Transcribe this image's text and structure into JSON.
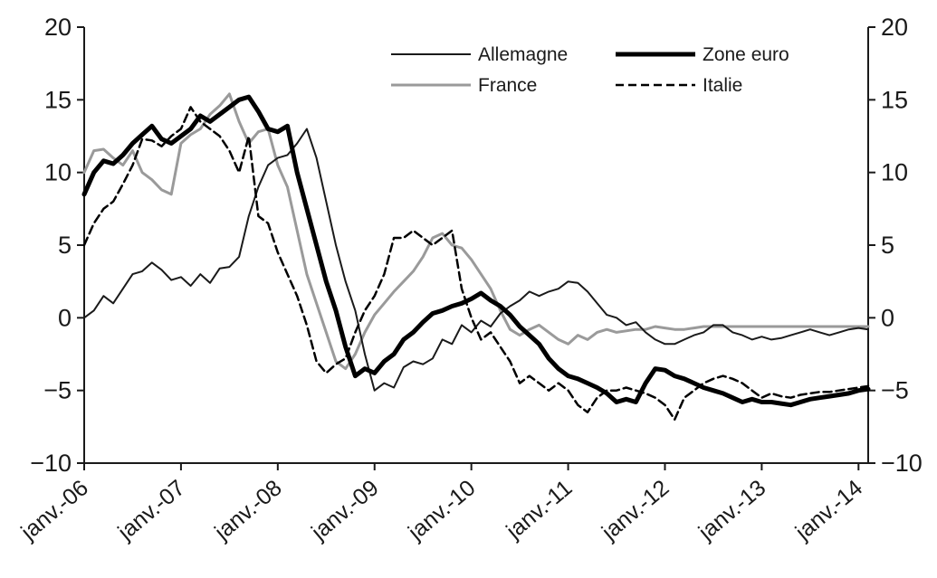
{
  "chart_data": {
    "type": "line",
    "title": "",
    "xlabel": "",
    "ylabel": "",
    "ylim": [
      -10,
      20
    ],
    "yticks": [
      -10,
      -5,
      0,
      5,
      10,
      15,
      20
    ],
    "ytick_labels": [
      "−10",
      "−5",
      "0",
      "5",
      "10",
      "15",
      "20"
    ],
    "x_ticks": [
      2006,
      2007,
      2008,
      2009,
      2010,
      2011,
      2012,
      2013,
      2014
    ],
    "x_tick_labels": [
      "janv.-06",
      "janv.-07",
      "janv.-08",
      "janv.-09",
      "janv.-10",
      "janv.-11",
      "janv.-12",
      "janv.-13",
      "janv.-14"
    ],
    "xlim": [
      2006,
      2014.1
    ],
    "grid": false,
    "secondary_y_axis": true,
    "legend": {
      "placement": "top-right"
    },
    "series": [
      {
        "name": "Allemagne",
        "color": "#1a1a1a",
        "style": "thin-solid",
        "x": [
          2006.0,
          2006.1,
          2006.2,
          2006.3,
          2006.4,
          2006.5,
          2006.6,
          2006.7,
          2006.8,
          2006.9,
          2007.0,
          2007.1,
          2007.2,
          2007.3,
          2007.4,
          2007.5,
          2007.6,
          2007.7,
          2007.8,
          2007.9,
          2008.0,
          2008.1,
          2008.2,
          2008.3,
          2008.4,
          2008.5,
          2008.6,
          2008.7,
          2008.8,
          2008.9,
          2009.0,
          2009.1,
          2009.2,
          2009.3,
          2009.4,
          2009.5,
          2009.6,
          2009.7,
          2009.8,
          2009.9,
          2010.0,
          2010.1,
          2010.2,
          2010.3,
          2010.4,
          2010.5,
          2010.6,
          2010.7,
          2010.8,
          2010.9,
          2011.0,
          2011.1,
          2011.2,
          2011.3,
          2011.4,
          2011.5,
          2011.6,
          2011.7,
          2011.8,
          2011.9,
          2012.0,
          2012.1,
          2012.2,
          2012.3,
          2012.4,
          2012.5,
          2012.6,
          2012.7,
          2012.8,
          2012.9,
          2013.0,
          2013.1,
          2013.2,
          2013.3,
          2013.4,
          2013.5,
          2013.6,
          2013.7,
          2013.8,
          2013.9,
          2014.0,
          2014.1
        ],
        "values": [
          0,
          0.5,
          1.5,
          1,
          2,
          3,
          3.2,
          3.8,
          3.3,
          2.6,
          2.8,
          2.2,
          3,
          2.4,
          3.4,
          3.5,
          4.2,
          7,
          9,
          10.5,
          11,
          11.2,
          12,
          13,
          11,
          8,
          5,
          2.5,
          0.5,
          -2.5,
          -5,
          -4.5,
          -4.8,
          -3.4,
          -3,
          -3.2,
          -2.8,
          -1.5,
          -1.8,
          -0.5,
          -1,
          -0.2,
          -0.6,
          0.3,
          0.8,
          1.2,
          1.8,
          1.5,
          1.8,
          2,
          2.5,
          2.4,
          1.8,
          1,
          0.2,
          0,
          -0.5,
          -0.3,
          -1,
          -1.5,
          -1.8,
          -1.8,
          -1.5,
          -1.2,
          -1,
          -0.5,
          -0.5,
          -1,
          -1.2,
          -1.5,
          -1.3,
          -1.5,
          -1.4,
          -1.2,
          -1,
          -0.8,
          -1,
          -1.2,
          -1,
          -0.8,
          -0.7,
          -0.8
        ]
      },
      {
        "name": "Zone euro",
        "color": "#000000",
        "style": "thick-solid",
        "x": [
          2006.0,
          2006.1,
          2006.2,
          2006.3,
          2006.4,
          2006.5,
          2006.6,
          2006.7,
          2006.8,
          2006.9,
          2007.0,
          2007.1,
          2007.2,
          2007.3,
          2007.4,
          2007.5,
          2007.6,
          2007.7,
          2007.8,
          2007.9,
          2008.0,
          2008.1,
          2008.2,
          2008.3,
          2008.4,
          2008.5,
          2008.6,
          2008.7,
          2008.8,
          2008.9,
          2009.0,
          2009.1,
          2009.2,
          2009.3,
          2009.4,
          2009.5,
          2009.6,
          2009.7,
          2009.8,
          2009.9,
          2010.0,
          2010.1,
          2010.2,
          2010.3,
          2010.4,
          2010.5,
          2010.6,
          2010.7,
          2010.8,
          2010.9,
          2011.0,
          2011.1,
          2011.2,
          2011.3,
          2011.4,
          2011.5,
          2011.6,
          2011.7,
          2011.8,
          2011.9,
          2012.0,
          2012.1,
          2012.2,
          2012.3,
          2012.4,
          2012.5,
          2012.6,
          2012.7,
          2012.8,
          2012.9,
          2013.0,
          2013.1,
          2013.2,
          2013.3,
          2013.4,
          2013.5,
          2013.6,
          2013.7,
          2013.8,
          2013.9,
          2014.0,
          2014.1
        ],
        "values": [
          8.5,
          10,
          10.8,
          10.6,
          11.2,
          12,
          12.6,
          13.2,
          12.3,
          12,
          12.5,
          13,
          13.9,
          13.5,
          14,
          14.5,
          15,
          15.2,
          14.2,
          13,
          12.8,
          13.2,
          10,
          7.5,
          5,
          2.5,
          0.5,
          -2,
          -4,
          -3.5,
          -3.8,
          -3,
          -2.5,
          -1.5,
          -1,
          -0.3,
          0.3,
          0.5,
          0.8,
          1,
          1.3,
          1.7,
          1.2,
          0.8,
          0.2,
          -0.6,
          -1.2,
          -1.8,
          -2.8,
          -3.5,
          -4,
          -4.2,
          -4.5,
          -4.8,
          -5.2,
          -5.8,
          -5.6,
          -5.8,
          -4.5,
          -3.5,
          -3.6,
          -4,
          -4.2,
          -4.5,
          -4.8,
          -5,
          -5.2,
          -5.5,
          -5.8,
          -5.6,
          -5.8,
          -5.8,
          -5.9,
          -6,
          -5.8,
          -5.6,
          -5.5,
          -5.4,
          -5.3,
          -5.2,
          -5,
          -4.9
        ]
      },
      {
        "name": "France",
        "color": "#9a9a9a",
        "style": "gray-solid",
        "x": [
          2006.0,
          2006.1,
          2006.2,
          2006.3,
          2006.4,
          2006.5,
          2006.6,
          2006.7,
          2006.8,
          2006.9,
          2007.0,
          2007.1,
          2007.2,
          2007.3,
          2007.4,
          2007.5,
          2007.6,
          2007.7,
          2007.8,
          2007.9,
          2008.0,
          2008.1,
          2008.2,
          2008.3,
          2008.4,
          2008.5,
          2008.6,
          2008.7,
          2008.8,
          2008.9,
          2009.0,
          2009.1,
          2009.2,
          2009.3,
          2009.4,
          2009.5,
          2009.6,
          2009.7,
          2009.8,
          2009.9,
          2010.0,
          2010.1,
          2010.2,
          2010.3,
          2010.4,
          2010.5,
          2010.6,
          2010.7,
          2010.8,
          2010.9,
          2011.0,
          2011.1,
          2011.2,
          2011.3,
          2011.4,
          2011.5,
          2011.6,
          2011.7,
          2011.8,
          2011.9,
          2012.0,
          2012.1,
          2012.2,
          2012.3,
          2012.4,
          2012.5,
          2012.6,
          2012.7,
          2012.8,
          2012.9,
          2013.0,
          2013.1,
          2013.2,
          2013.3,
          2013.4,
          2013.5,
          2013.6,
          2013.7,
          2013.8,
          2013.9,
          2014.0,
          2014.1
        ],
        "values": [
          10,
          11.5,
          11.6,
          11,
          10.5,
          11.5,
          10,
          9.5,
          8.8,
          8.5,
          12,
          12.6,
          13,
          14,
          14.6,
          15.4,
          13.5,
          12,
          12.8,
          13,
          10.5,
          9,
          6,
          3,
          1,
          -1,
          -3,
          -3.5,
          -2.5,
          -1,
          0.2,
          1,
          1.8,
          2.5,
          3.2,
          4.2,
          5.5,
          5.8,
          5,
          4.8,
          4,
          3,
          2,
          0.5,
          -0.8,
          -1.2,
          -0.8,
          -0.5,
          -1,
          -1.5,
          -1.8,
          -1.2,
          -1.5,
          -1,
          -0.8,
          -1,
          -0.9,
          -0.8,
          -0.8,
          -0.6,
          -0.7,
          -0.8,
          -0.8,
          -0.7,
          -0.6,
          -0.6,
          -0.6,
          -0.6,
          -0.6,
          -0.6,
          -0.6,
          -0.6,
          -0.6,
          -0.6,
          -0.6,
          -0.6,
          -0.6,
          -0.6,
          -0.6,
          -0.6,
          -0.6,
          -0.6
        ]
      },
      {
        "name": "Italie",
        "color": "#000000",
        "style": "dashed",
        "x": [
          2006.0,
          2006.1,
          2006.2,
          2006.3,
          2006.4,
          2006.5,
          2006.6,
          2006.7,
          2006.8,
          2006.9,
          2007.0,
          2007.1,
          2007.2,
          2007.3,
          2007.4,
          2007.5,
          2007.6,
          2007.7,
          2007.8,
          2007.9,
          2008.0,
          2008.1,
          2008.2,
          2008.3,
          2008.4,
          2008.5,
          2008.6,
          2008.7,
          2008.8,
          2008.9,
          2009.0,
          2009.1,
          2009.2,
          2009.3,
          2009.4,
          2009.5,
          2009.6,
          2009.7,
          2009.8,
          2009.9,
          2010.0,
          2010.1,
          2010.2,
          2010.3,
          2010.4,
          2010.5,
          2010.6,
          2010.7,
          2010.8,
          2010.9,
          2011.0,
          2011.1,
          2011.2,
          2011.3,
          2011.4,
          2011.5,
          2011.6,
          2011.7,
          2011.8,
          2011.9,
          2012.0,
          2012.1,
          2012.2,
          2012.3,
          2012.4,
          2012.5,
          2012.6,
          2012.7,
          2012.8,
          2012.9,
          2013.0,
          2013.1,
          2013.2,
          2013.3,
          2013.4,
          2013.5,
          2013.6,
          2013.7,
          2013.8,
          2013.9,
          2014.0,
          2014.1
        ],
        "values": [
          5,
          6.5,
          7.5,
          8,
          9.2,
          10.5,
          12.3,
          12.2,
          11.8,
          12.5,
          13,
          14.5,
          13.5,
          13,
          12.5,
          11.5,
          10,
          12.5,
          7,
          6.5,
          4.5,
          3,
          1.5,
          -0.5,
          -3,
          -3.8,
          -3.2,
          -2.8,
          -1,
          0.5,
          1.5,
          3,
          5.5,
          5.5,
          6,
          5.5,
          5,
          5.5,
          6,
          2,
          0,
          -1.5,
          -1,
          -2,
          -3,
          -4.5,
          -4,
          -4.5,
          -5,
          -4.5,
          -5,
          -6,
          -6.5,
          -5.5,
          -5,
          -5,
          -4.8,
          -5,
          -5.2,
          -5.5,
          -6,
          -7,
          -5.5,
          -5,
          -4.5,
          -4.2,
          -4,
          -4.2,
          -4.5,
          -5,
          -5.5,
          -5.2,
          -5.4,
          -5.5,
          -5.3,
          -5.2,
          -5.1,
          -5.1,
          -5.0,
          -4.9,
          -4.8,
          -4.7
        ]
      }
    ]
  }
}
